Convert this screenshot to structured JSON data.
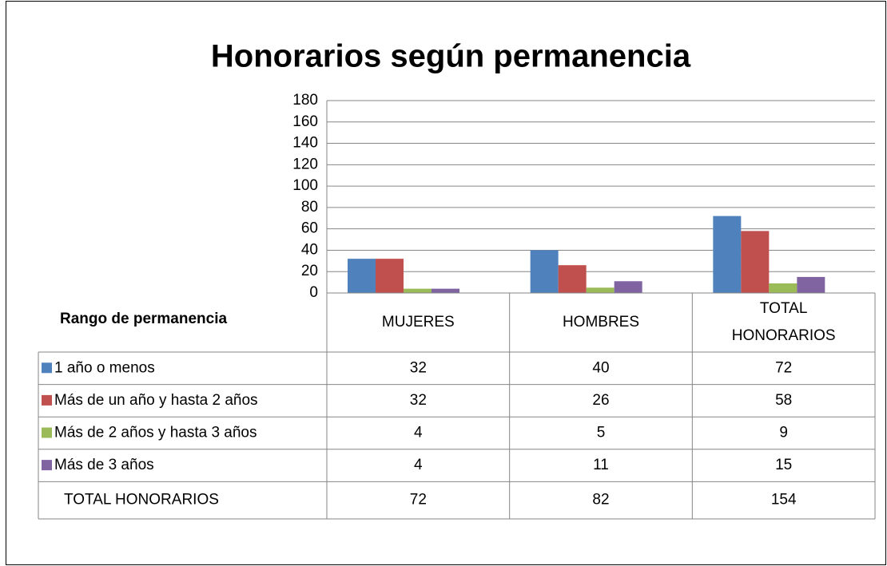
{
  "chart_data": {
    "type": "bar",
    "title": "Honorarios según permanencia",
    "x_label": "Rango de permanencia",
    "categories": [
      "MUJERES",
      "HOMBRES",
      "TOTAL HONORARIOS"
    ],
    "series": [
      {
        "name": "1 año o menos",
        "color": "#4f81bd",
        "values": [
          32,
          40,
          72
        ]
      },
      {
        "name": "Más de un año y hasta 2 años",
        "color": "#c0504d",
        "values": [
          32,
          26,
          58
        ]
      },
      {
        "name": "Más de 2 años y hasta 3 años",
        "color": "#9bbb59",
        "values": [
          4,
          5,
          9
        ]
      },
      {
        "name": "Más de 3 años",
        "color": "#8064a2",
        "values": [
          4,
          11,
          15
        ]
      }
    ],
    "totals": {
      "name": "TOTAL HONORARIOS",
      "values": [
        72,
        82,
        154
      ]
    },
    "ylim": [
      0,
      180
    ],
    "yticks": [
      0,
      20,
      40,
      60,
      80,
      100,
      120,
      140,
      160,
      180
    ],
    "grid": true
  }
}
